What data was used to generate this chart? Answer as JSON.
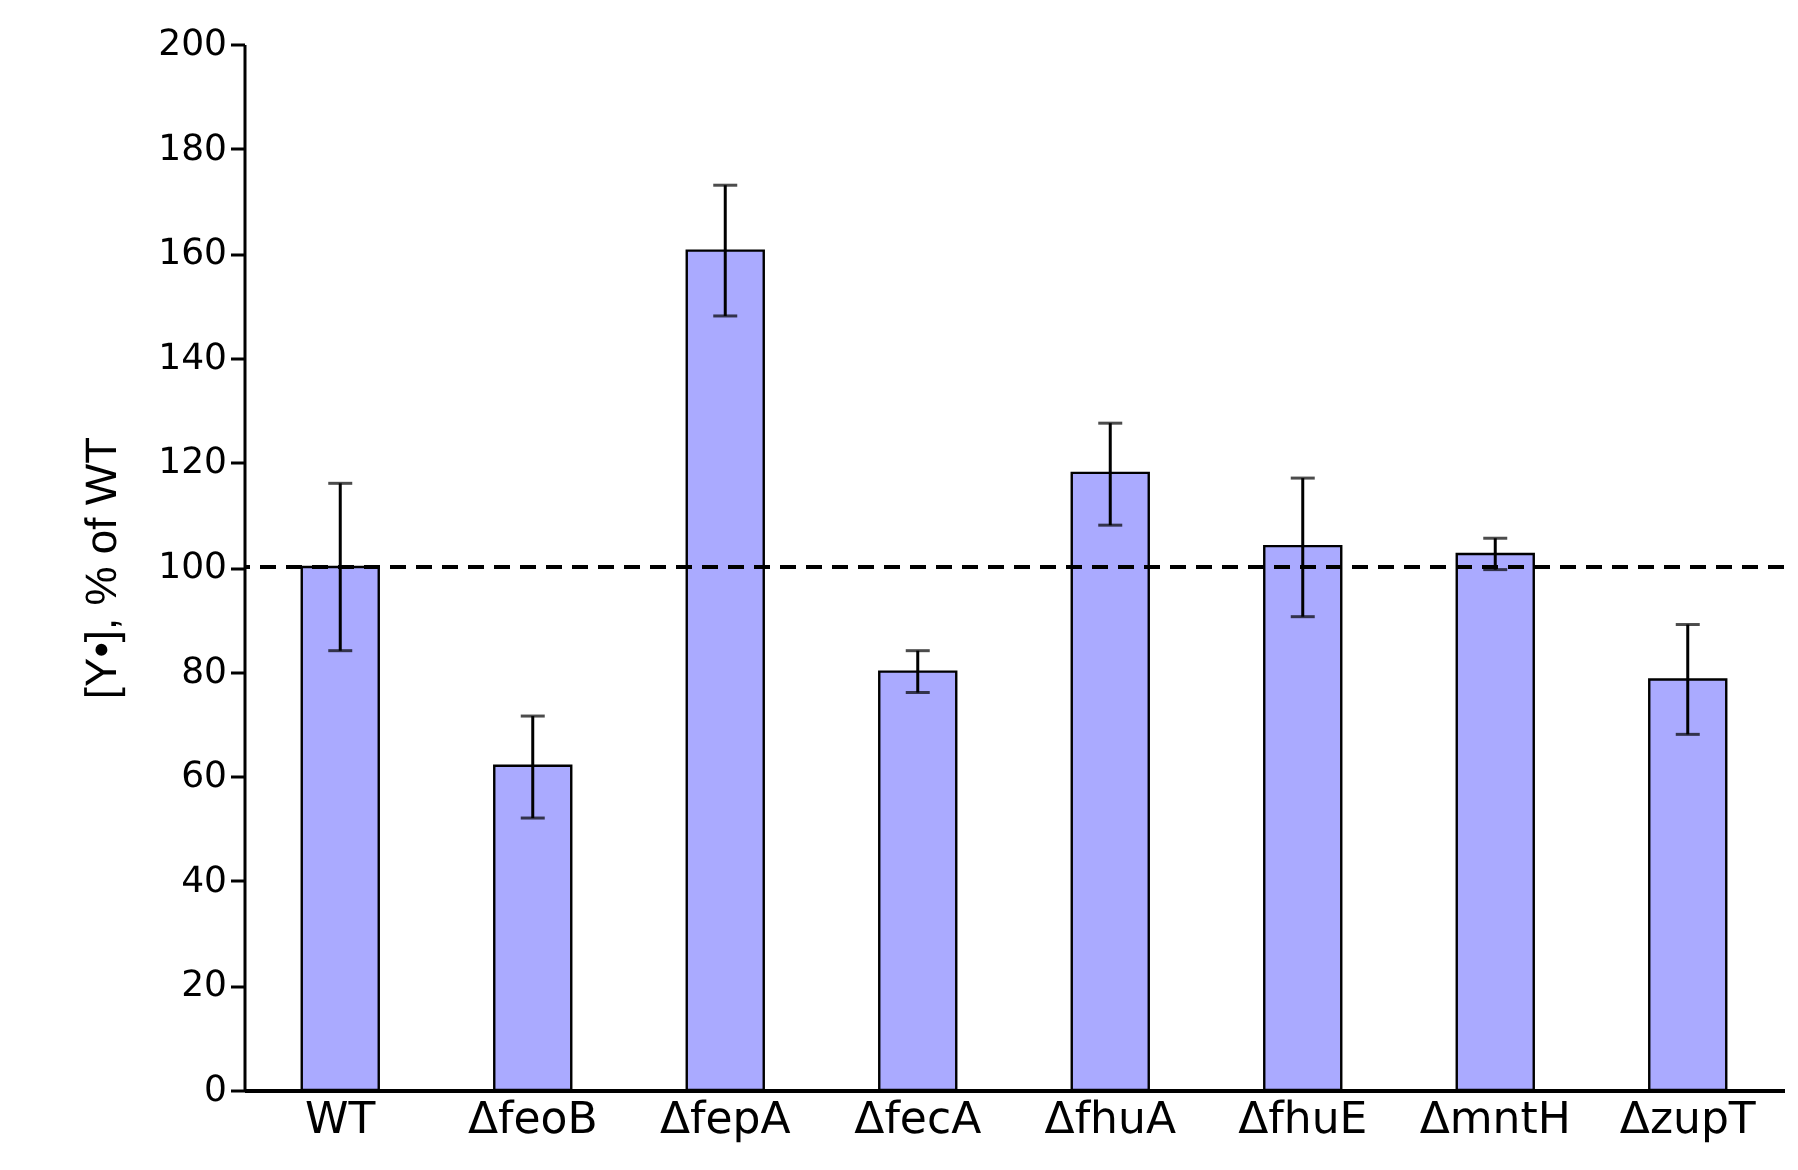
{
  "chart_data": {
    "type": "bar",
    "ylabel": "[Y•], % of WT",
    "categories": [
      "WT",
      "ΔfeoB",
      "ΔfepA",
      "ΔfecA",
      "ΔfhuA",
      "ΔfhuE",
      "ΔmntH",
      "ΔzupT"
    ],
    "values": [
      100,
      62,
      160.5,
      80,
      118,
      104,
      102.5,
      78.5
    ],
    "errors": [
      [
        84,
        116
      ],
      [
        52,
        71.5
      ],
      [
        148,
        173
      ],
      [
        76,
        84
      ],
      [
        108,
        127.5
      ],
      [
        90.5,
        117
      ],
      [
        99.5,
        105.5
      ],
      [
        68,
        89
      ]
    ],
    "color": "#aaaaff",
    "ylim": [
      0,
      200
    ],
    "yticks": [
      0,
      20,
      40,
      60,
      80,
      100,
      120,
      140,
      160,
      180,
      200
    ],
    "ref_lines": [
      {
        "axis": "y",
        "value": 100,
        "color": "#000000",
        "line_style": "dashed"
      }
    ],
    "grid": false
  }
}
